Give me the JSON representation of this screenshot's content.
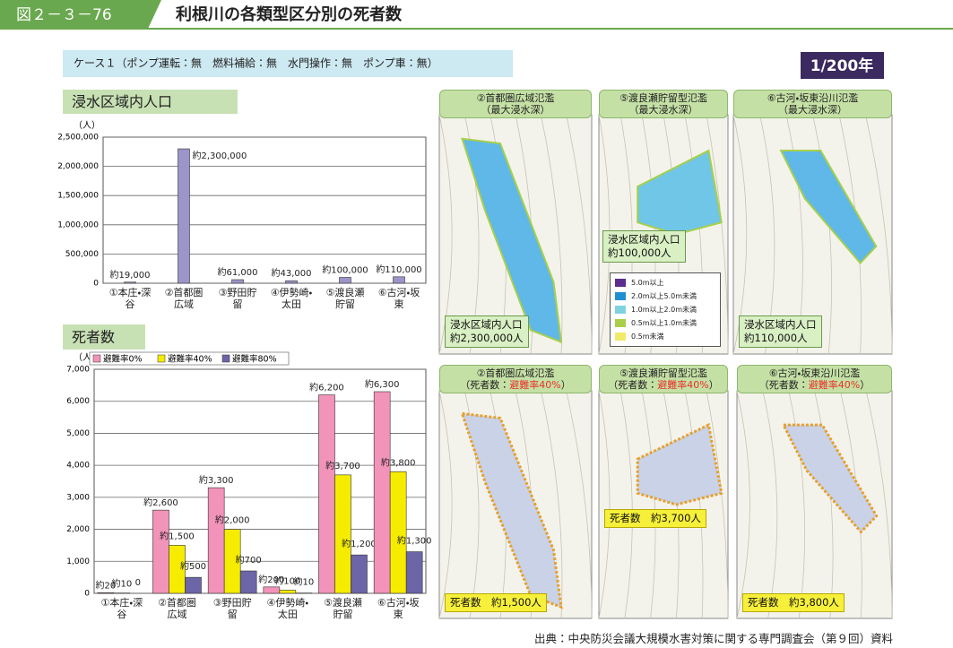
{
  "header": {
    "figure_number": "図２－３－76",
    "title": "利根川の各類型区分別の死者数"
  },
  "case_label": "ケース１（ポンプ運転：無　燃料補給：無　水門操作：無　ポンプ車：無）",
  "badge": "1/200年",
  "chart_data": [
    {
      "type": "bar",
      "title": "浸水区域内人口",
      "y_label": "（人）",
      "categories": [
        "①本庄・深谷",
        "②首都圏広域",
        "③野田貯留",
        "④伊勢崎・太田",
        "⑤渡良瀬貯留",
        "⑥古河・坂東"
      ],
      "series": [
        {
          "name": null,
          "color": "#9b95c9",
          "values": [
            19000,
            2300000,
            61000,
            43000,
            100000,
            110000
          ],
          "value_labels": [
            "約19,000",
            "約2,300,000",
            "約61,000",
            "約43,000",
            "約100,000",
            "約110,000"
          ]
        }
      ],
      "ylim": [
        0,
        2500000
      ],
      "yticks": [
        0,
        {
          "value": 500000,
          "label": "500,000"
        },
        {
          "value": 1000000,
          "label": "1,000,000"
        },
        {
          "value": 1500000,
          "label": "1,500,000"
        },
        {
          "value": 2000000,
          "label": "2,000,000"
        },
        {
          "value": 2500000,
          "label": "2,500,000"
        }
      ],
      "grid": true
    },
    {
      "type": "bar",
      "title": "死者数",
      "y_label": "（人）",
      "categories": [
        "①本庄・深谷",
        "②首都圏広域",
        "③野田貯留",
        "④伊勢崎・太田",
        "⑤渡良瀬貯留",
        "⑥古河・坂東"
      ],
      "series": [
        {
          "name": "避難率0%",
          "color": "#f293b9",
          "values": [
            20,
            2600,
            3300,
            200,
            6200,
            6300
          ],
          "value_labels": [
            "約20",
            "約2,600",
            "約3,300",
            "約200",
            "約6,200",
            "約6,300"
          ]
        },
        {
          "name": "避難率40%",
          "color": "#f5ec00",
          "values": [
            10,
            1500,
            2000,
            100,
            3700,
            3800
          ],
          "value_labels": [
            "約10",
            "約1,500",
            "約2,000",
            "約100",
            "約3,700",
            "約3,800"
          ]
        },
        {
          "name": "避難率80%",
          "color": "#6c65a8",
          "values": [
            0,
            500,
            700,
            10,
            1200,
            1300
          ],
          "value_labels": [
            "0",
            "約500",
            "約700",
            "約10",
            "約1,200",
            "約1,300"
          ]
        }
      ],
      "ylim": [
        0,
        7000
      ],
      "yticks": [
        0,
        {
          "value": 1000,
          "label": "1,000"
        },
        {
          "value": 2000,
          "label": "2,000"
        },
        {
          "value": 3000,
          "label": "3,000"
        },
        {
          "value": 4000,
          "label": "4,000"
        },
        {
          "value": 5000,
          "label": "5,000"
        },
        {
          "value": 6000,
          "label": "6,000"
        },
        {
          "value": 7000,
          "label": "7,000"
        }
      ],
      "grid": true
    }
  ],
  "maps": {
    "top": [
      {
        "title": "②首都圏広域氾濫",
        "subtitle": "（最大浸水深）",
        "caption_label": "浸水区域内人口",
        "caption_value": "約2,300,000人"
      },
      {
        "title": "⑤渡良瀬貯留型氾濫",
        "subtitle": "（最大浸水深）",
        "caption_label": "浸水区域内人口",
        "caption_value": "約100,000人"
      },
      {
        "title": "⑥古河・坂東沿川氾濫",
        "subtitle": "（最大浸水深）",
        "caption_label": "浸水区域内人口",
        "caption_value": "約110,000人"
      }
    ],
    "depth_legend": [
      {
        "label": "5.0m以上",
        "color": "#5b2d8e"
      },
      {
        "label": "2.0m以上5.0m未満",
        "color": "#1e8fd0"
      },
      {
        "label": "1.0m以上2.0m未満",
        "color": "#7fd3e0"
      },
      {
        "label": "0.5m以上1.0m未満",
        "color": "#a8cf4a"
      },
      {
        "label": "0.5m未満",
        "color": "#f2ea6a"
      }
    ],
    "bottom": [
      {
        "title": "②首都圏広域氾濫",
        "subtitle_prefix": "（死者数：",
        "subtitle_highlight": "避難率40%",
        "subtitle_suffix": "）",
        "caption": "死者数　約1,500人"
      },
      {
        "title": "⑤渡良瀬貯留型氾濫",
        "subtitle_prefix": "（死者数：",
        "subtitle_highlight": "避難率40%",
        "subtitle_suffix": "）",
        "caption": "死者数　約3,700人"
      },
      {
        "title": "⑥古河・坂東沿川氾濫",
        "subtitle_prefix": "（死者数：",
        "subtitle_highlight": "避難率40%",
        "subtitle_suffix": "）",
        "caption": "死者数　約3,800人"
      }
    ]
  },
  "source": "出典：中央防災会議大規模水害対策に関する専門調査会（第９回）資料"
}
